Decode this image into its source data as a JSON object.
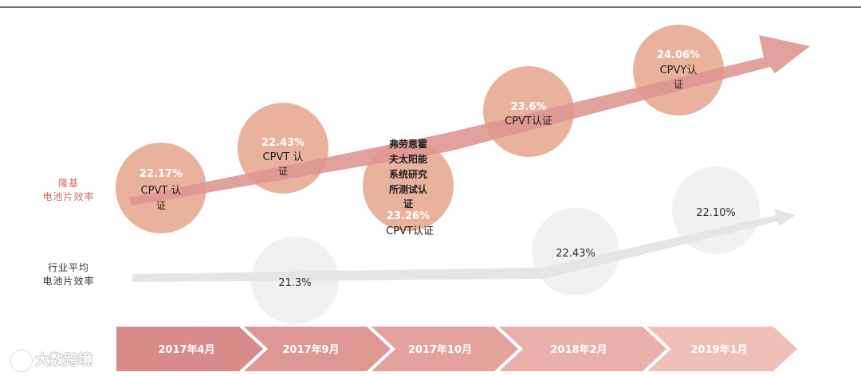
{
  "left_labels": {
    "longi": [
      "隆基",
      "电池片效率"
    ],
    "industry": [
      "行业平均",
      "电池片效率"
    ]
  },
  "longi_bubbles": [
    {
      "pct": "22.17%",
      "cert": [
        "CPVT 认",
        "证"
      ]
    },
    {
      "pct": "22.43%",
      "cert": [
        "CPVT 认",
        "证"
      ]
    },
    {
      "pct": "23.26%",
      "pre": [
        "弗劳恩霍",
        "夫太阳能",
        "系统研究",
        "所测试认",
        "证"
      ],
      "cert": [
        "CPVT认证"
      ]
    },
    {
      "pct": "23.6%",
      "cert": [
        "CPVT认证"
      ]
    },
    {
      "pct": "24.06%",
      "cert": [
        "CPVY认",
        "证"
      ]
    }
  ],
  "industry_bubbles": [
    {
      "pct": "21.3%"
    },
    {
      "pct": "22.43%"
    },
    {
      "pct": "22.10%"
    }
  ],
  "timeline": [
    "2017年4月",
    "2017年9月",
    "2017年10月",
    "2018年2月",
    "2019年1月"
  ],
  "watermark": "大数跨境",
  "colors": {
    "longi_bubble": "#e9b29d",
    "longi_arrow": "#dd9591",
    "industry_bubble": "#f1f0f3",
    "industry_arrow": "#e4e4e6",
    "timeline_1": "#d98b89",
    "timeline_2": "#de9792",
    "timeline_3": "#e3a39c",
    "timeline_4": "#e9b1aa",
    "timeline_5": "#eec0b8",
    "longi_label": "#d2685f",
    "industry_label": "#333333"
  }
}
